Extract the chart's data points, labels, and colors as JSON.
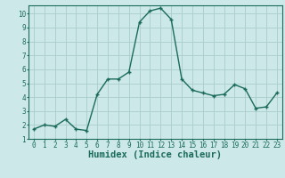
{
  "x": [
    0,
    1,
    2,
    3,
    4,
    5,
    6,
    7,
    8,
    9,
    10,
    11,
    12,
    13,
    14,
    15,
    16,
    17,
    18,
    19,
    20,
    21,
    22,
    23
  ],
  "y": [
    1.7,
    2.0,
    1.9,
    2.4,
    1.7,
    1.6,
    4.2,
    5.3,
    5.3,
    5.8,
    9.4,
    10.2,
    10.4,
    9.6,
    5.3,
    4.5,
    4.3,
    4.1,
    4.2,
    4.9,
    4.6,
    3.2,
    3.3,
    4.3
  ],
  "line_color": "#1a6b5a",
  "marker": "+",
  "bg_color": "#cce8e8",
  "grid_color": "#aacccc",
  "xlabel": "Humidex (Indice chaleur)",
  "xlim": [
    -0.5,
    23.5
  ],
  "ylim": [
    1,
    10.6
  ],
  "yticks": [
    1,
    2,
    3,
    4,
    5,
    6,
    7,
    8,
    9,
    10
  ],
  "xticks": [
    0,
    1,
    2,
    3,
    4,
    5,
    6,
    7,
    8,
    9,
    10,
    11,
    12,
    13,
    14,
    15,
    16,
    17,
    18,
    19,
    20,
    21,
    22,
    23
  ],
  "tick_label_fontsize": 5.5,
  "axis_label_fontsize": 7.5,
  "line_width": 1.0,
  "marker_size": 3.5
}
